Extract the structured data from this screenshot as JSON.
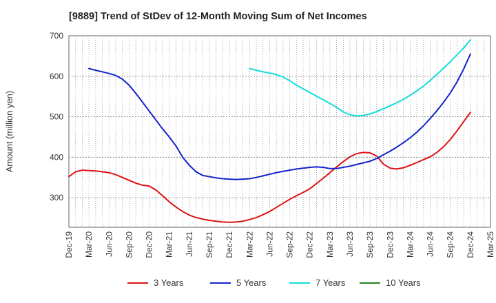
{
  "chart_data": {
    "type": "line",
    "title": "[9889]  Trend of StDev of 12-Month Moving Sum of Net Incomes",
    "ylabel": "Amount (million yen)",
    "xlabel": "",
    "ylim": [
      227,
      700
    ],
    "yticks": [
      300,
      400,
      500,
      600,
      700
    ],
    "xlim": [
      "2019-12",
      "2025-03"
    ],
    "xtick_labels": [
      "Dec-19",
      "Mar-20",
      "Jun-20",
      "Sep-20",
      "Dec-20",
      "Mar-21",
      "Jun-21",
      "Sep-21",
      "Dec-21",
      "Mar-22",
      "Jun-22",
      "Sep-22",
      "Dec-22",
      "Mar-23",
      "Jun-23",
      "Sep-23",
      "Dec-23",
      "Mar-24",
      "Jun-24",
      "Sep-24",
      "Dec-24",
      "Mar-25"
    ],
    "grid": true,
    "legend_position": "bottom",
    "series": [
      {
        "name": "3 Years",
        "color": "#dd1111",
        "points": [
          [
            "2019-12",
            352
          ],
          [
            "2020-01",
            364
          ],
          [
            "2020-02",
            368
          ],
          [
            "2020-03",
            367
          ],
          [
            "2020-04",
            366
          ],
          [
            "2020-05",
            364
          ],
          [
            "2020-06",
            362
          ],
          [
            "2020-07",
            357
          ],
          [
            "2020-08",
            350
          ],
          [
            "2020-09",
            343
          ],
          [
            "2020-10",
            336
          ],
          [
            "2020-11",
            331
          ],
          [
            "2020-12",
            329
          ],
          [
            "2021-01",
            319
          ],
          [
            "2021-02",
            305
          ],
          [
            "2021-03",
            290
          ],
          [
            "2021-04",
            277
          ],
          [
            "2021-05",
            266
          ],
          [
            "2021-06",
            257
          ],
          [
            "2021-07",
            251
          ],
          [
            "2021-08",
            247
          ],
          [
            "2021-09",
            244
          ],
          [
            "2021-10",
            242
          ],
          [
            "2021-11",
            240
          ],
          [
            "2021-12",
            239
          ],
          [
            "2022-01",
            240
          ],
          [
            "2022-02",
            242
          ],
          [
            "2022-03",
            246
          ],
          [
            "2022-04",
            251
          ],
          [
            "2022-05",
            258
          ],
          [
            "2022-06",
            266
          ],
          [
            "2022-07",
            276
          ],
          [
            "2022-08",
            286
          ],
          [
            "2022-09",
            296
          ],
          [
            "2022-10",
            305
          ],
          [
            "2022-11",
            313
          ],
          [
            "2022-12",
            322
          ],
          [
            "2023-01",
            335
          ],
          [
            "2023-02",
            348
          ],
          [
            "2023-03",
            362
          ],
          [
            "2023-04",
            376
          ],
          [
            "2023-05",
            389
          ],
          [
            "2023-06",
            401
          ],
          [
            "2023-07",
            409
          ],
          [
            "2023-08",
            412
          ],
          [
            "2023-09",
            411
          ],
          [
            "2023-10",
            403
          ],
          [
            "2023-11",
            383
          ],
          [
            "2023-12",
            373
          ],
          [
            "2024-01",
            371
          ],
          [
            "2024-02",
            374
          ],
          [
            "2024-03",
            380
          ],
          [
            "2024-04",
            387
          ],
          [
            "2024-05",
            394
          ],
          [
            "2024-06",
            401
          ],
          [
            "2024-07",
            412
          ],
          [
            "2024-08",
            426
          ],
          [
            "2024-09",
            444
          ],
          [
            "2024-10",
            465
          ],
          [
            "2024-11",
            488
          ],
          [
            "2024-12",
            511
          ]
        ]
      },
      {
        "name": "5 Years",
        "color": "#1122cc",
        "points": [
          [
            "2020-03",
            619
          ],
          [
            "2020-04",
            615
          ],
          [
            "2020-05",
            611
          ],
          [
            "2020-06",
            607
          ],
          [
            "2020-07",
            602
          ],
          [
            "2020-08",
            593
          ],
          [
            "2020-09",
            578
          ],
          [
            "2020-10",
            558
          ],
          [
            "2020-11",
            536
          ],
          [
            "2020-12",
            514
          ],
          [
            "2021-01",
            492
          ],
          [
            "2021-02",
            470
          ],
          [
            "2021-03",
            450
          ],
          [
            "2021-04",
            428
          ],
          [
            "2021-05",
            400
          ],
          [
            "2021-06",
            380
          ],
          [
            "2021-07",
            364
          ],
          [
            "2021-08",
            355
          ],
          [
            "2021-09",
            352
          ],
          [
            "2021-10",
            349
          ],
          [
            "2021-11",
            347
          ],
          [
            "2021-12",
            346
          ],
          [
            "2022-01",
            345
          ],
          [
            "2022-02",
            346
          ],
          [
            "2022-03",
            347
          ],
          [
            "2022-04",
            350
          ],
          [
            "2022-05",
            354
          ],
          [
            "2022-06",
            358
          ],
          [
            "2022-07",
            362
          ],
          [
            "2022-08",
            365
          ],
          [
            "2022-09",
            368
          ],
          [
            "2022-10",
            371
          ],
          [
            "2022-11",
            373
          ],
          [
            "2022-12",
            375
          ],
          [
            "2023-01",
            376
          ],
          [
            "2023-02",
            375
          ],
          [
            "2023-03",
            372
          ],
          [
            "2023-04",
            372
          ],
          [
            "2023-05",
            375
          ],
          [
            "2023-06",
            378
          ],
          [
            "2023-07",
            382
          ],
          [
            "2023-08",
            386
          ],
          [
            "2023-09",
            390
          ],
          [
            "2023-10",
            397
          ],
          [
            "2023-11",
            406
          ],
          [
            "2023-12",
            415
          ],
          [
            "2024-01",
            425
          ],
          [
            "2024-02",
            436
          ],
          [
            "2024-03",
            448
          ],
          [
            "2024-04",
            462
          ],
          [
            "2024-05",
            478
          ],
          [
            "2024-06",
            496
          ],
          [
            "2024-07",
            515
          ],
          [
            "2024-08",
            536
          ],
          [
            "2024-09",
            559
          ],
          [
            "2024-10",
            586
          ],
          [
            "2024-11",
            618
          ],
          [
            "2024-12",
            655
          ]
        ]
      },
      {
        "name": "7 Years",
        "color": "#11dddd",
        "points": [
          [
            "2022-03",
            619
          ],
          [
            "2022-04",
            615
          ],
          [
            "2022-05",
            611
          ],
          [
            "2022-06",
            608
          ],
          [
            "2022-07",
            604
          ],
          [
            "2022-08",
            598
          ],
          [
            "2022-09",
            589
          ],
          [
            "2022-10",
            578
          ],
          [
            "2022-11",
            569
          ],
          [
            "2022-12",
            560
          ],
          [
            "2023-01",
            551
          ],
          [
            "2023-02",
            542
          ],
          [
            "2023-03",
            533
          ],
          [
            "2023-04",
            523
          ],
          [
            "2023-05",
            512
          ],
          [
            "2023-06",
            505
          ],
          [
            "2023-07",
            502
          ],
          [
            "2023-08",
            503
          ],
          [
            "2023-09",
            507
          ],
          [
            "2023-10",
            513
          ],
          [
            "2023-11",
            520
          ],
          [
            "2023-12",
            527
          ],
          [
            "2024-01",
            535
          ],
          [
            "2024-02",
            543
          ],
          [
            "2024-03",
            553
          ],
          [
            "2024-04",
            564
          ],
          [
            "2024-05",
            576
          ],
          [
            "2024-06",
            590
          ],
          [
            "2024-07",
            605
          ],
          [
            "2024-08",
            620
          ],
          [
            "2024-09",
            636
          ],
          [
            "2024-10",
            653
          ],
          [
            "2024-11",
            670
          ],
          [
            "2024-12",
            690
          ]
        ]
      },
      {
        "name": "10 Years",
        "color": "#228822",
        "points": []
      }
    ]
  }
}
